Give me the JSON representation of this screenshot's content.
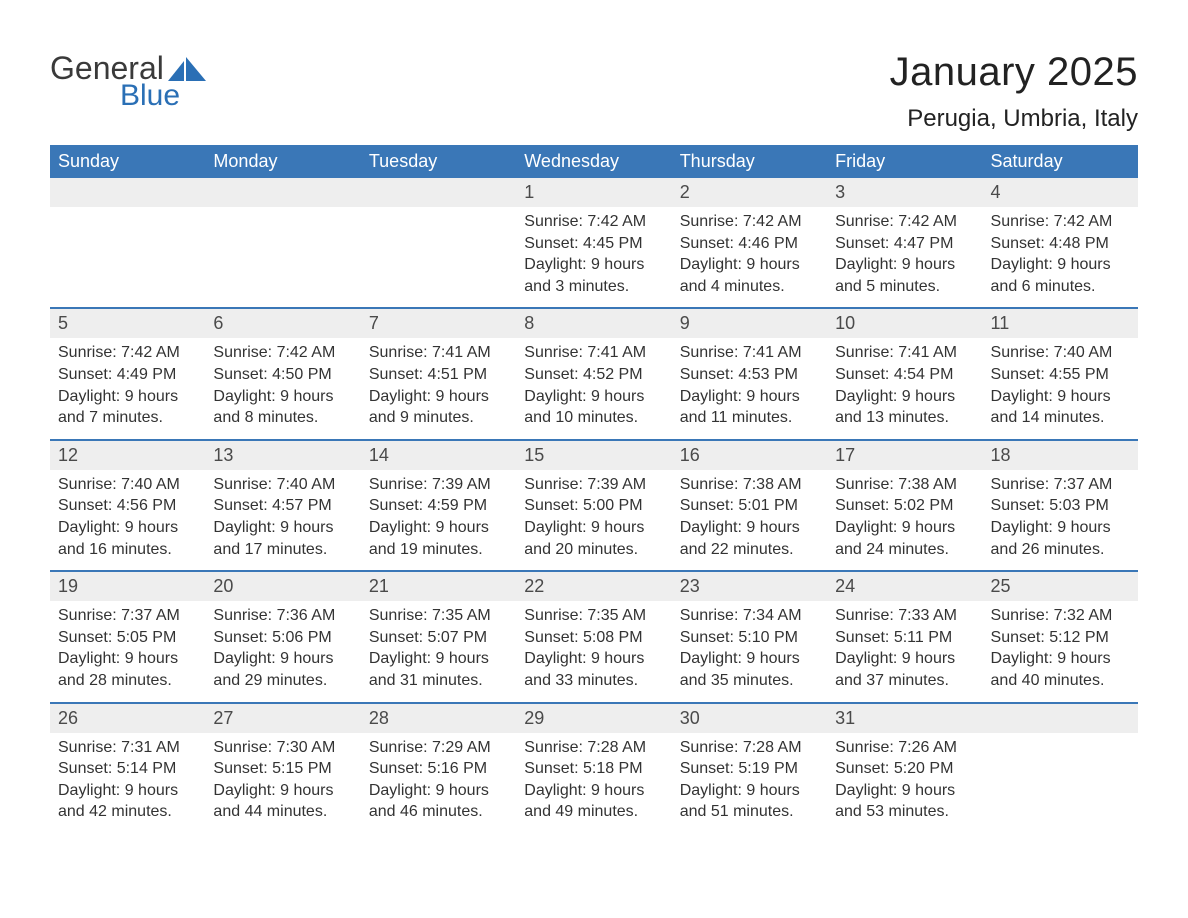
{
  "logo": {
    "general": "General",
    "blue": "Blue"
  },
  "title": "January 2025",
  "location": "Perugia, Umbria, Italy",
  "dayHeaders": [
    "Sunday",
    "Monday",
    "Tuesday",
    "Wednesday",
    "Thursday",
    "Friday",
    "Saturday"
  ],
  "colors": {
    "header_bg": "#3a77b7",
    "header_text": "#ffffff",
    "daynum_bg": "#eeeeee",
    "row_border": "#3a77b7",
    "body_text": "#333333",
    "background": "#ffffff"
  },
  "weeks": [
    [
      null,
      null,
      null,
      {
        "n": "1",
        "sr": "Sunrise: 7:42 AM",
        "ss": "Sunset: 4:45 PM",
        "d1": "Daylight: 9 hours",
        "d2": "and 3 minutes."
      },
      {
        "n": "2",
        "sr": "Sunrise: 7:42 AM",
        "ss": "Sunset: 4:46 PM",
        "d1": "Daylight: 9 hours",
        "d2": "and 4 minutes."
      },
      {
        "n": "3",
        "sr": "Sunrise: 7:42 AM",
        "ss": "Sunset: 4:47 PM",
        "d1": "Daylight: 9 hours",
        "d2": "and 5 minutes."
      },
      {
        "n": "4",
        "sr": "Sunrise: 7:42 AM",
        "ss": "Sunset: 4:48 PM",
        "d1": "Daylight: 9 hours",
        "d2": "and 6 minutes."
      }
    ],
    [
      {
        "n": "5",
        "sr": "Sunrise: 7:42 AM",
        "ss": "Sunset: 4:49 PM",
        "d1": "Daylight: 9 hours",
        "d2": "and 7 minutes."
      },
      {
        "n": "6",
        "sr": "Sunrise: 7:42 AM",
        "ss": "Sunset: 4:50 PM",
        "d1": "Daylight: 9 hours",
        "d2": "and 8 minutes."
      },
      {
        "n": "7",
        "sr": "Sunrise: 7:41 AM",
        "ss": "Sunset: 4:51 PM",
        "d1": "Daylight: 9 hours",
        "d2": "and 9 minutes."
      },
      {
        "n": "8",
        "sr": "Sunrise: 7:41 AM",
        "ss": "Sunset: 4:52 PM",
        "d1": "Daylight: 9 hours",
        "d2": "and 10 minutes."
      },
      {
        "n": "9",
        "sr": "Sunrise: 7:41 AM",
        "ss": "Sunset: 4:53 PM",
        "d1": "Daylight: 9 hours",
        "d2": "and 11 minutes."
      },
      {
        "n": "10",
        "sr": "Sunrise: 7:41 AM",
        "ss": "Sunset: 4:54 PM",
        "d1": "Daylight: 9 hours",
        "d2": "and 13 minutes."
      },
      {
        "n": "11",
        "sr": "Sunrise: 7:40 AM",
        "ss": "Sunset: 4:55 PM",
        "d1": "Daylight: 9 hours",
        "d2": "and 14 minutes."
      }
    ],
    [
      {
        "n": "12",
        "sr": "Sunrise: 7:40 AM",
        "ss": "Sunset: 4:56 PM",
        "d1": "Daylight: 9 hours",
        "d2": "and 16 minutes."
      },
      {
        "n": "13",
        "sr": "Sunrise: 7:40 AM",
        "ss": "Sunset: 4:57 PM",
        "d1": "Daylight: 9 hours",
        "d2": "and 17 minutes."
      },
      {
        "n": "14",
        "sr": "Sunrise: 7:39 AM",
        "ss": "Sunset: 4:59 PM",
        "d1": "Daylight: 9 hours",
        "d2": "and 19 minutes."
      },
      {
        "n": "15",
        "sr": "Sunrise: 7:39 AM",
        "ss": "Sunset: 5:00 PM",
        "d1": "Daylight: 9 hours",
        "d2": "and 20 minutes."
      },
      {
        "n": "16",
        "sr": "Sunrise: 7:38 AM",
        "ss": "Sunset: 5:01 PM",
        "d1": "Daylight: 9 hours",
        "d2": "and 22 minutes."
      },
      {
        "n": "17",
        "sr": "Sunrise: 7:38 AM",
        "ss": "Sunset: 5:02 PM",
        "d1": "Daylight: 9 hours",
        "d2": "and 24 minutes."
      },
      {
        "n": "18",
        "sr": "Sunrise: 7:37 AM",
        "ss": "Sunset: 5:03 PM",
        "d1": "Daylight: 9 hours",
        "d2": "and 26 minutes."
      }
    ],
    [
      {
        "n": "19",
        "sr": "Sunrise: 7:37 AM",
        "ss": "Sunset: 5:05 PM",
        "d1": "Daylight: 9 hours",
        "d2": "and 28 minutes."
      },
      {
        "n": "20",
        "sr": "Sunrise: 7:36 AM",
        "ss": "Sunset: 5:06 PM",
        "d1": "Daylight: 9 hours",
        "d2": "and 29 minutes."
      },
      {
        "n": "21",
        "sr": "Sunrise: 7:35 AM",
        "ss": "Sunset: 5:07 PM",
        "d1": "Daylight: 9 hours",
        "d2": "and 31 minutes."
      },
      {
        "n": "22",
        "sr": "Sunrise: 7:35 AM",
        "ss": "Sunset: 5:08 PM",
        "d1": "Daylight: 9 hours",
        "d2": "and 33 minutes."
      },
      {
        "n": "23",
        "sr": "Sunrise: 7:34 AM",
        "ss": "Sunset: 5:10 PM",
        "d1": "Daylight: 9 hours",
        "d2": "and 35 minutes."
      },
      {
        "n": "24",
        "sr": "Sunrise: 7:33 AM",
        "ss": "Sunset: 5:11 PM",
        "d1": "Daylight: 9 hours",
        "d2": "and 37 minutes."
      },
      {
        "n": "25",
        "sr": "Sunrise: 7:32 AM",
        "ss": "Sunset: 5:12 PM",
        "d1": "Daylight: 9 hours",
        "d2": "and 40 minutes."
      }
    ],
    [
      {
        "n": "26",
        "sr": "Sunrise: 7:31 AM",
        "ss": "Sunset: 5:14 PM",
        "d1": "Daylight: 9 hours",
        "d2": "and 42 minutes."
      },
      {
        "n": "27",
        "sr": "Sunrise: 7:30 AM",
        "ss": "Sunset: 5:15 PM",
        "d1": "Daylight: 9 hours",
        "d2": "and 44 minutes."
      },
      {
        "n": "28",
        "sr": "Sunrise: 7:29 AM",
        "ss": "Sunset: 5:16 PM",
        "d1": "Daylight: 9 hours",
        "d2": "and 46 minutes."
      },
      {
        "n": "29",
        "sr": "Sunrise: 7:28 AM",
        "ss": "Sunset: 5:18 PM",
        "d1": "Daylight: 9 hours",
        "d2": "and 49 minutes."
      },
      {
        "n": "30",
        "sr": "Sunrise: 7:28 AM",
        "ss": "Sunset: 5:19 PM",
        "d1": "Daylight: 9 hours",
        "d2": "and 51 minutes."
      },
      {
        "n": "31",
        "sr": "Sunrise: 7:26 AM",
        "ss": "Sunset: 5:20 PM",
        "d1": "Daylight: 9 hours",
        "d2": "and 53 minutes."
      },
      null
    ]
  ]
}
